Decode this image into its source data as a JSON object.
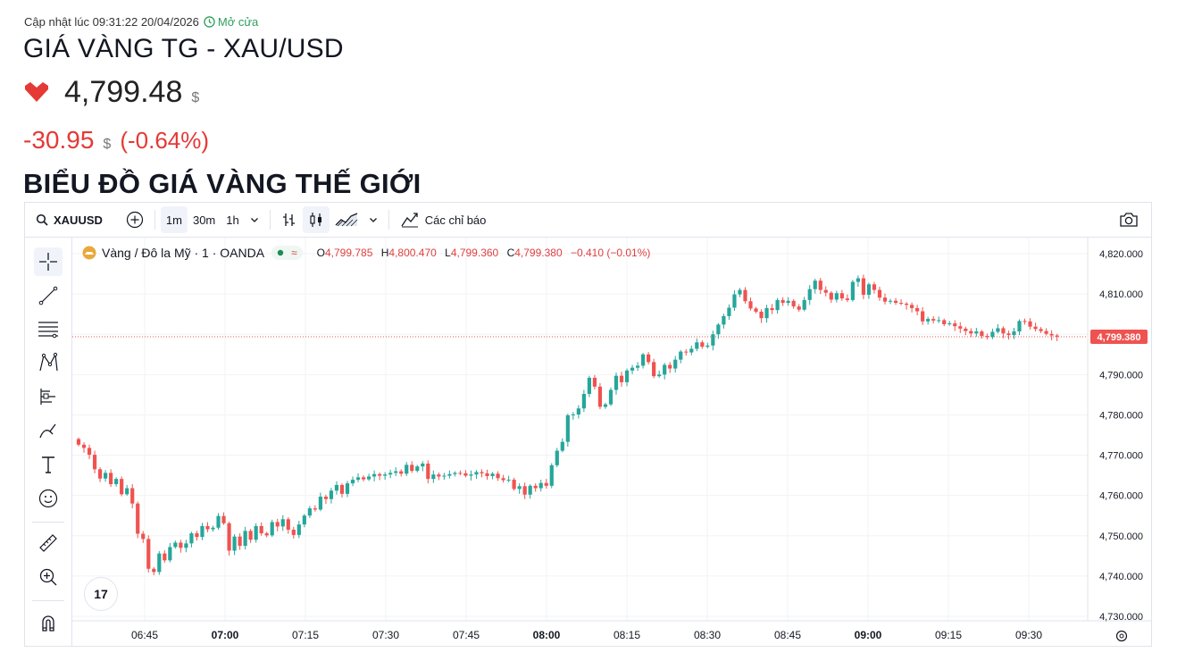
{
  "header": {
    "updated_text": "Cập nhật lúc 09:31:22 20/04/2026",
    "status_text": "Mở cửa",
    "title": "GIÁ VÀNG TG - XAU/USD",
    "price": "4,799.48",
    "price_unit": "$",
    "change": "-30.95",
    "change_unit": "$",
    "change_pct": "(-0.64%)",
    "section_title": "BIỂU ĐỒ GIÁ VÀNG THẾ GIỚI"
  },
  "toolbar": {
    "symbol": "XAUUSD",
    "intervals": [
      "1m",
      "30m",
      "1h"
    ],
    "active_interval": "1m",
    "indicators_label": "Các chỉ báo"
  },
  "legend": {
    "name": "Vàng / Đô la Mỹ · 1 · OANDA",
    "o_label": "O",
    "o_value": "4,799.785",
    "h_label": "H",
    "h_value": "4,800.470",
    "l_label": "L",
    "l_value": "4,799.360",
    "c_label": "C",
    "c_value": "4,799.380",
    "change": "−0.410 (−0.01%)"
  },
  "colors": {
    "up": "#26a69a",
    "down": "#ef5350",
    "accent_green": "#2e9e5b",
    "down_text": "#e53935"
  },
  "icons": [
    "clock-icon",
    "heart-down-icon",
    "search-icon",
    "compare-plus-icon",
    "chevron-down-icon",
    "bar-style-icon",
    "candle-style-icon",
    "area-style-icon",
    "indicators-icon",
    "camera-icon",
    "crosshair-icon",
    "trend-line-icon",
    "fib-icon",
    "pattern-icon",
    "forecast-icon",
    "brush-icon",
    "text-icon",
    "emoji-icon",
    "ruler-icon",
    "zoom-icon",
    "magnet-icon",
    "settings-icon"
  ],
  "chart_data": {
    "type": "candlestick",
    "symbol": "XAUUSD",
    "interval": "1m",
    "ylim": [
      4727,
      4822
    ],
    "y_ticks": [
      "4,820.000",
      "4,810.000",
      "4,800.000",
      "4,790.000",
      "4,780.000",
      "4,770.000",
      "4,760.000",
      "4,750.000",
      "4,740.000",
      "4,730.000"
    ],
    "x_ticks": [
      {
        "label": "06:45",
        "bold": false
      },
      {
        "label": "07:00",
        "bold": true
      },
      {
        "label": "07:15",
        "bold": false
      },
      {
        "label": "07:30",
        "bold": false
      },
      {
        "label": "07:45",
        "bold": false
      },
      {
        "label": "08:00",
        "bold": true
      },
      {
        "label": "08:15",
        "bold": false
      },
      {
        "label": "08:30",
        "bold": false
      },
      {
        "label": "08:45",
        "bold": false
      },
      {
        "label": "09:00",
        "bold": true
      },
      {
        "label": "09:15",
        "bold": false
      },
      {
        "label": "09:30",
        "bold": false
      }
    ],
    "last_price": 4799.38,
    "last_price_label": "4,799.380",
    "series_close": [
      4772.6,
      4771.8,
      4770.1,
      4766.5,
      4764.2,
      4765.6,
      4762.8,
      4764.1,
      4760.3,
      4761.8,
      4758.0,
      4750.5,
      4749.2,
      4741.8,
      4741.0,
      4745.6,
      4743.9,
      4747.2,
      4748.3,
      4747.0,
      4748.1,
      4750.6,
      4749.7,
      4752.4,
      4751.6,
      4752.0,
      4754.9,
      4753.1,
      4746.3,
      4749.8,
      4747.5,
      4751.2,
      4749.0,
      4752.4,
      4750.6,
      4750.1,
      4753.4,
      4752.3,
      4754.1,
      4751.5,
      4750.2,
      4752.8,
      4755.0,
      4756.8,
      4756.5,
      4759.7,
      4759.1,
      4761.2,
      4762.6,
      4760.4,
      4763.0,
      4763.9,
      4764.5,
      4764.0,
      4764.7,
      4765.3,
      4764.9,
      4765.2,
      4765.6,
      4766.0,
      4765.4,
      4767.6,
      4766.1,
      4767.2,
      4767.9,
      4764.1,
      4765.2,
      4764.7,
      4764.9,
      4765.3,
      4765.6,
      4765.5,
      4764.9,
      4765.2,
      4765.8,
      4765.5,
      4764.8,
      4765.4,
      4764.3,
      4763.8,
      4763.9,
      4761.6,
      4762.3,
      4760.2,
      4762.4,
      4761.8,
      4763.1,
      4762.4,
      4767.5,
      4771.1,
      4773.3,
      4779.9,
      4780.1,
      4781.6,
      4785.2,
      4789.2,
      4787.0,
      4782.0,
      4782.6,
      4786.2,
      4789.7,
      4788.1,
      4791.0,
      4791.7,
      4792.2,
      4795.0,
      4793.1,
      4789.6,
      4790.0,
      4792.4,
      4791.5,
      4793.7,
      4795.7,
      4795.5,
      4796.4,
      4798.0,
      4796.9,
      4797.2,
      4800.0,
      4802.4,
      4804.5,
      4806.6,
      4809.9,
      4811.0,
      4808.2,
      4806.4,
      4805.6,
      4804.0,
      4806.5,
      4806.0,
      4808.5,
      4807.8,
      4808.3,
      4806.9,
      4806.1,
      4808.5,
      4811.2,
      4813.3,
      4811.0,
      4810.3,
      4808.6,
      4810.2,
      4808.9,
      4808.5,
      4813.0,
      4813.9,
      4809.8,
      4812.4,
      4811.0,
      4809.1,
      4808.1,
      4808.3,
      4807.8,
      4807.6,
      4807.3,
      4806.5,
      4805.7,
      4803.2,
      4803.8,
      4803.4,
      4803.5,
      4802.5,
      4802.7,
      4802.0,
      4801.4,
      4800.8,
      4800.2,
      4800.7,
      4799.6,
      4799.3,
      4800.6,
      4801.5,
      4800.2,
      4799.8,
      4800.7,
      4803.3,
      4803.2,
      4801.9,
      4801.3,
      4800.8,
      4800.1,
      4799.7,
      4799.4
    ]
  }
}
